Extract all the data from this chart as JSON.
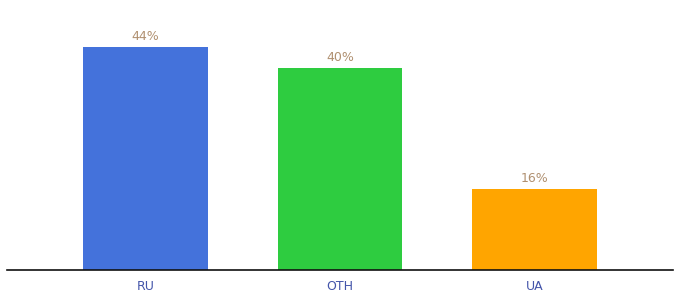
{
  "categories": [
    "RU",
    "OTH",
    "UA"
  ],
  "values": [
    44,
    40,
    16
  ],
  "bar_colors": [
    "#4472db",
    "#2ecc40",
    "#ffa500"
  ],
  "label_texts": [
    "44%",
    "40%",
    "16%"
  ],
  "label_color": "#b09070",
  "ylim": [
    0,
    52
  ],
  "bar_width": 0.18,
  "x_positions": [
    0.22,
    0.5,
    0.78
  ],
  "tick_fontsize": 9,
  "label_fontsize": 9,
  "background_color": "#ffffff",
  "spine_color": "#111111",
  "tick_label_color": "#4455aa"
}
